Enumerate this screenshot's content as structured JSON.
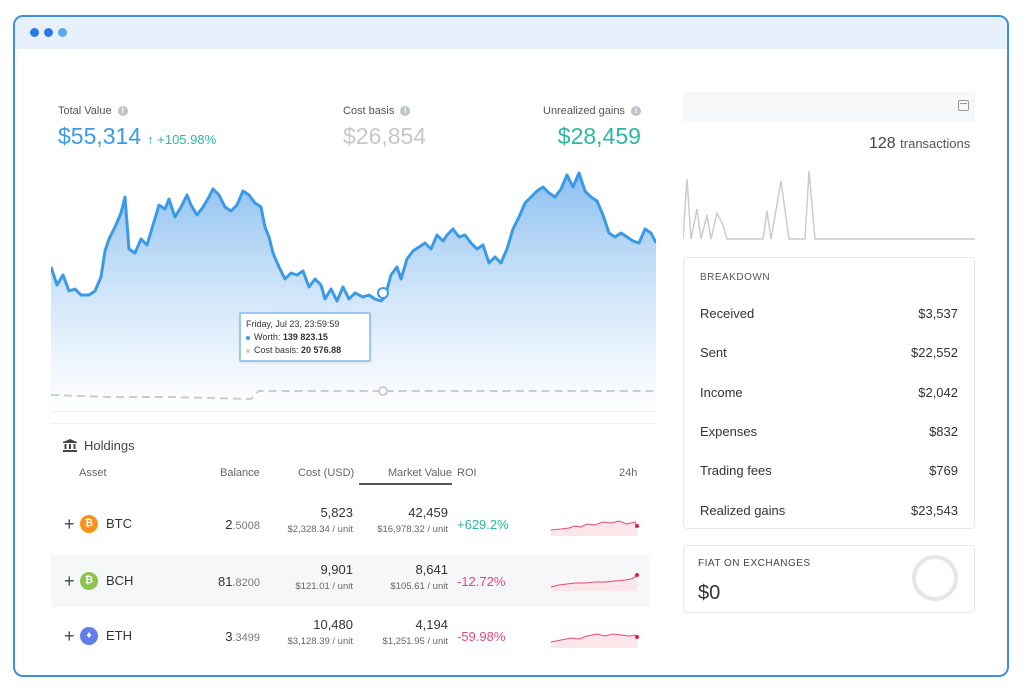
{
  "stats": {
    "total_value": {
      "label": "Total Value",
      "value": "$55,314",
      "change": "↑ +105.98%"
    },
    "cost_basis": {
      "label": "Cost basis",
      "value": "$26,854"
    },
    "unrealized": {
      "label": "Unrealized gains",
      "value": "$28,459"
    }
  },
  "tooltip": {
    "date": "Friday, Jul 23, 23:59:59",
    "worth_label": "Worth:",
    "worth_value": "139 823.15",
    "cost_label": "Cost basis:",
    "cost_value": "20 576.88"
  },
  "holdings": {
    "title": "Holdings",
    "headers": {
      "asset": "Asset",
      "balance": "Balance",
      "cost": "Cost (USD)",
      "market": "Market Value",
      "roi": "ROI",
      "h24": "24h"
    },
    "rows": [
      {
        "symbol": "BTC",
        "bal_int": "2",
        "bal_dec": ".5008",
        "cost": "5,823",
        "cost_unit": "$2,328.34 / unit",
        "market": "42,459",
        "market_unit": "$16,978.32 / unit",
        "roi": "+629.2%"
      },
      {
        "symbol": "BCH",
        "bal_int": "81",
        "bal_dec": ".8200",
        "cost": "9,901",
        "cost_unit": "$121.01 / unit",
        "market": "8,641",
        "market_unit": "$105.61 / unit",
        "roi": "-12.72%"
      },
      {
        "symbol": "ETH",
        "bal_int": "3",
        "bal_dec": ".3499",
        "cost": "10,480",
        "cost_unit": "$3,128.39 / unit",
        "market": "4,194",
        "market_unit": "$1,251.95 / unit",
        "roi": "-59.98%"
      }
    ]
  },
  "transactions": {
    "count": "128",
    "label": "transactions"
  },
  "breakdown": {
    "title": "BREAKDOWN",
    "items": [
      {
        "label": "Received",
        "value": "$3,537"
      },
      {
        "label": "Sent",
        "value": "$22,552"
      },
      {
        "label": "Income",
        "value": "$2,042"
      },
      {
        "label": "Expenses",
        "value": "$832"
      },
      {
        "label": "Trading fees",
        "value": "$769"
      },
      {
        "label": "Realized gains",
        "value": "$23,543"
      }
    ]
  },
  "fiat": {
    "title": "FIAT ON EXCHANGES",
    "value": "$0"
  },
  "colors": {
    "accent": "#3b9ae8",
    "teal": "#2bb7a4",
    "positive": "#2bb7a4",
    "negative": "#e8477a",
    "btc": "#f7931a",
    "bch": "#8dc351",
    "eth": "#627eea"
  },
  "icons": {
    "calendar": "calendar-icon",
    "bank": "bank-icon",
    "info": "info-icon",
    "plus": "plus-icon"
  }
}
